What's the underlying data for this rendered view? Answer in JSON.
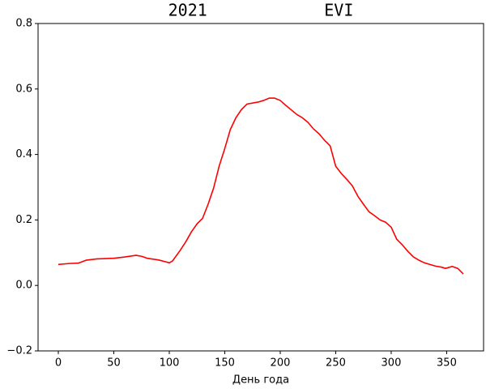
{
  "chart_data": {
    "type": "line",
    "title": "2021            EVI",
    "xlabel": "День года",
    "x": [
      0,
      10,
      18,
      25,
      35,
      50,
      60,
      70,
      75,
      80,
      90,
      97,
      100,
      103,
      110,
      115,
      120,
      125,
      130,
      135,
      140,
      145,
      150,
      155,
      160,
      165,
      170,
      180,
      185,
      190,
      195,
      200,
      205,
      215,
      220,
      225,
      230,
      235,
      240,
      245,
      250,
      255,
      260,
      265,
      270,
      275,
      280,
      285,
      290,
      295,
      300,
      305,
      310,
      315,
      320,
      325,
      330,
      335,
      340,
      345,
      349,
      355,
      360,
      365
    ],
    "series": [
      {
        "name": "EVI",
        "color": "#ff0000",
        "values": [
          0.064,
          0.067,
          0.068,
          0.077,
          0.081,
          0.083,
          0.087,
          0.092,
          0.089,
          0.083,
          0.078,
          0.072,
          0.069,
          0.075,
          0.108,
          0.134,
          0.164,
          0.188,
          0.205,
          0.248,
          0.298,
          0.365,
          0.418,
          0.476,
          0.512,
          0.537,
          0.554,
          0.56,
          0.565,
          0.572,
          0.572,
          0.565,
          0.55,
          0.522,
          0.512,
          0.498,
          0.478,
          0.463,
          0.443,
          0.426,
          0.364,
          0.342,
          0.324,
          0.304,
          0.272,
          0.248,
          0.225,
          0.213,
          0.2,
          0.193,
          0.178,
          0.141,
          0.124,
          0.104,
          0.087,
          0.077,
          0.069,
          0.064,
          0.059,
          0.056,
          0.052,
          0.058,
          0.052,
          0.035
        ]
      }
    ],
    "xlim": [
      -18.25,
      383.25
    ],
    "xticks": [
      0,
      50,
      100,
      150,
      200,
      250,
      300,
      350
    ],
    "ylim": [
      -0.2,
      0.8
    ],
    "yticks": [
      {
        "value": -0.2,
        "label": "−0.2"
      },
      {
        "value": 0,
        "label": "0.0"
      },
      0.2,
      0.4,
      0.6,
      0.8
    ]
  }
}
